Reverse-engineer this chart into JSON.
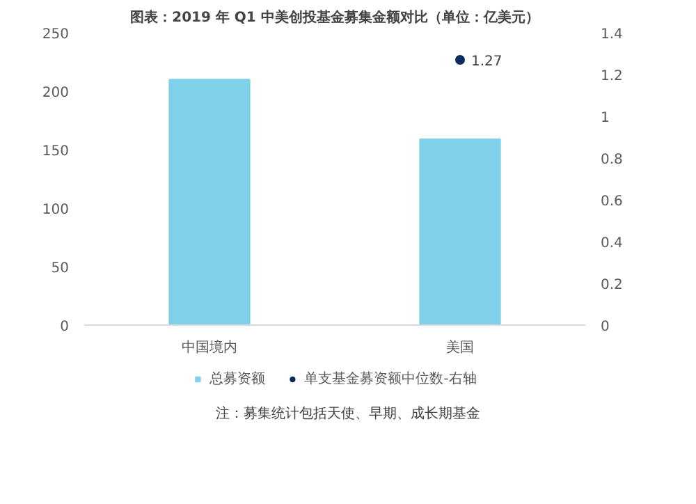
{
  "chart_data": {
    "type": "bar",
    "title": "图表：2019 年 Q1 中美创投基金募集金额对比（单位：亿美元）",
    "categories": [
      "中国境内",
      "美国"
    ],
    "series": [
      {
        "name": "总募资额",
        "color": "#7fd1ea",
        "values": [
          210,
          159
        ]
      },
      {
        "name": "单支基金募资额中位数-右轴",
        "type": "scatter",
        "axis": "y2",
        "color": "#0d2a5c",
        "values": [
          null,
          1.27
        ],
        "value_labels": [
          null,
          "1.27"
        ]
      }
    ],
    "ylim": [
      0,
      250
    ],
    "yticks": [
      0,
      50,
      100,
      150,
      200,
      250
    ],
    "y2lim": [
      0,
      1.4
    ],
    "y2ticks": [
      0,
      {
        "value": 0.2,
        "label": "0.2"
      },
      {
        "value": 0.4,
        "label": "0.4"
      },
      {
        "value": 0.6,
        "label": "0.6"
      },
      {
        "value": 0.8,
        "label": "0.8"
      },
      1,
      {
        "value": 1.2,
        "label": "1.2"
      },
      {
        "value": 1.4,
        "label": "1.4"
      }
    ],
    "marker": "circle",
    "legend": "bottom",
    "annotations": [
      "注：募集统计包括天使、早期、成长期基金"
    ]
  }
}
